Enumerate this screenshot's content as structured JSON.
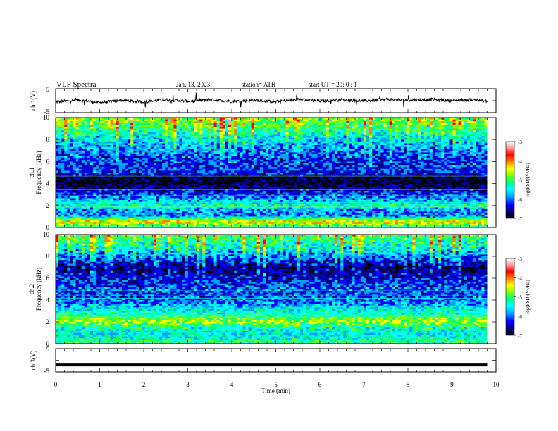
{
  "header": {
    "title": "VLF  Spectra",
    "date": "Jan. 13, 2023",
    "station": "station= ATH",
    "start": "start  UT  =    20: 0   : 1"
  },
  "panels": {
    "ch1_wave": {
      "ylabel": "ch.1(V)",
      "ticks": [
        "5",
        "-5"
      ]
    },
    "ch1_spec": {
      "ylabel_top": "ch.1",
      "ylabel": "Frequency  (kHz)",
      "ticks": [
        "10",
        "8",
        "6",
        "4",
        "2",
        "0"
      ]
    },
    "ch2_spec": {
      "ylabel_top": "ch.2",
      "ylabel": "Frequency  (kHz)",
      "ticks": [
        "10",
        "8",
        "6",
        "4",
        "2",
        "0"
      ]
    },
    "ch3_wave": {
      "ylabel": "ch.3(V)",
      "ticks": [
        "5",
        "-5"
      ]
    }
  },
  "xaxis": {
    "label": "Time  (min)",
    "ticks": [
      "0",
      "1",
      "2",
      "3",
      "4",
      "5",
      "6",
      "7",
      "8",
      "9",
      "10"
    ]
  },
  "colorbar": {
    "label": "log(PSD)(V²/Hz)",
    "ticks": [
      "-3",
      "-4",
      "-5",
      "-6",
      "-7"
    ]
  },
  "chart_data": [
    {
      "type": "line",
      "title": "VLF  Spectra",
      "xlabel": "Time  (min)",
      "ylabel": "ch.1(V)",
      "xlim": [
        0,
        10
      ],
      "ylim": [
        -5,
        5
      ],
      "series": [
        {
          "x": [
            0,
            0.5,
            1,
            1.5,
            2,
            2.5,
            3,
            3.5,
            4,
            4.5,
            5,
            5.5,
            6,
            6.5,
            7,
            7.5,
            8,
            8.5,
            9,
            9.5,
            9.8
          ],
          "values": [
            -0.5,
            0.3,
            -0.8,
            0.2,
            -0.5,
            0.4,
            -0.2,
            0.5,
            -0.3,
            0.2,
            -0.4,
            0.5,
            -0.2,
            0.4,
            -0.1,
            0.6,
            0.2,
            0.5,
            0.1,
            0.4,
            -0.3
          ]
        }
      ]
    },
    {
      "type": "heatmap",
      "ylabel_top": "ch.1",
      "xlabel": "Time  (min)",
      "ylabel": "Frequency  (kHz)",
      "xlim": [
        0,
        10
      ],
      "ylim": [
        0,
        10
      ],
      "data_end_time": 9.8,
      "colorbar_label": "log(PSD)(V²/Hz)",
      "colorbar_range": [
        -7,
        -3
      ],
      "colormap": [
        "#000000",
        "#000080",
        "#0000ff",
        "#00a0ff",
        "#00ffff",
        "#00ff80",
        "#80ff00",
        "#ffff00",
        "#ff8000",
        "#ff0000",
        "#ffa0a0",
        "#ffffff"
      ],
      "freq_profile": [
        {
          "f": 0.0,
          "v": -5.2
        },
        {
          "f": 0.5,
          "v": -4.4
        },
        {
          "f": 1.0,
          "v": -5.8
        },
        {
          "f": 1.5,
          "v": -5.9
        },
        {
          "f": 2.0,
          "v": -5.3
        },
        {
          "f": 2.5,
          "v": -5.7
        },
        {
          "f": 3.0,
          "v": -6.1
        },
        {
          "f": 3.5,
          "v": -6.4
        },
        {
          "f": 4.0,
          "v": -6.8
        },
        {
          "f": 4.5,
          "v": -6.7
        },
        {
          "f": 5.0,
          "v": -6.1
        },
        {
          "f": 6.0,
          "v": -6.2
        },
        {
          "f": 7.0,
          "v": -6.0
        },
        {
          "f": 8.0,
          "v": -5.7
        },
        {
          "f": 9.0,
          "v": -5.3
        },
        {
          "f": 10.0,
          "v": -5.0
        }
      ]
    },
    {
      "type": "heatmap",
      "ylabel_top": "ch.2",
      "xlabel": "Time  (min)",
      "ylabel": "Frequency  (kHz)",
      "xlim": [
        0,
        10
      ],
      "ylim": [
        0,
        10
      ],
      "data_end_time": 9.8,
      "colorbar_label": "log(PSD)(V²/Hz)",
      "colorbar_range": [
        -7,
        -3
      ],
      "colormap": [
        "#000000",
        "#000080",
        "#0000ff",
        "#00a0ff",
        "#00ffff",
        "#00ff80",
        "#80ff00",
        "#ffff00",
        "#ff8000",
        "#ff0000",
        "#ffa0a0",
        "#ffffff"
      ],
      "freq_profile": [
        {
          "f": 0.0,
          "v": -5.0
        },
        {
          "f": 0.5,
          "v": -5.4
        },
        {
          "f": 1.0,
          "v": -5.5
        },
        {
          "f": 1.5,
          "v": -5.3
        },
        {
          "f": 2.0,
          "v": -4.7
        },
        {
          "f": 2.5,
          "v": -5.2
        },
        {
          "f": 3.0,
          "v": -5.4
        },
        {
          "f": 3.5,
          "v": -5.7
        },
        {
          "f": 4.0,
          "v": -6.0
        },
        {
          "f": 4.5,
          "v": -6.1
        },
        {
          "f": 5.0,
          "v": -6.0
        },
        {
          "f": 6.0,
          "v": -6.3
        },
        {
          "f": 7.0,
          "v": -6.6
        },
        {
          "f": 8.0,
          "v": -6.0
        },
        {
          "f": 9.0,
          "v": -5.5
        },
        {
          "f": 10.0,
          "v": -5.2
        }
      ]
    },
    {
      "type": "line",
      "xlabel": "Time  (min)",
      "ylabel": "ch.3(V)",
      "xlim": [
        0,
        10
      ],
      "ylim": [
        -5,
        5
      ],
      "series": [
        {
          "x": [
            0,
            9.8
          ],
          "values": [
            -2,
            -2
          ]
        }
      ]
    }
  ]
}
